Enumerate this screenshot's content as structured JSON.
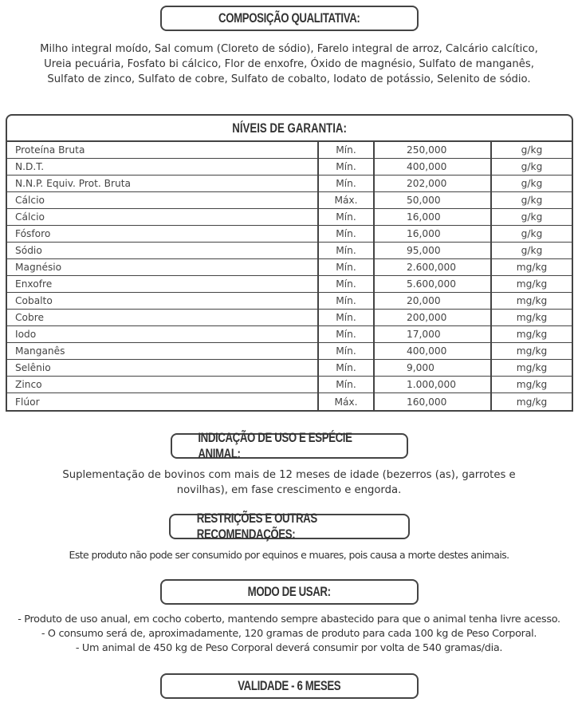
{
  "composicao": {
    "title": "COMPOSIÇÃO QUALITATIVA:",
    "lines": [
      "Milho integral moído, Sal comum (Cloreto de sódio), Farelo integral de arroz, Calcário calcítico,",
      "Ureia pecuária, Fosfato bi cálcico, Flor de enxofre, Óxido de magnésio, Sulfato de manganês,",
      "Sulfato de zinco, Sulfato de cobre, Sulfato de cobalto, Iodato de potássio, Selenito de sódio."
    ]
  },
  "niveis": {
    "title": "NÍVEIS DE GARANTIA:",
    "rows": [
      {
        "nutriente": "Proteína Bruta",
        "tipo": "Mín.",
        "valor": "250,000",
        "unidade": "g/kg"
      },
      {
        "nutriente": "N.D.T.",
        "tipo": "Mín.",
        "valor": "400,000",
        "unidade": "g/kg"
      },
      {
        "nutriente": "N.N.P. Equiv. Prot. Bruta",
        "tipo": "Mín.",
        "valor": "202,000",
        "unidade": "g/kg"
      },
      {
        "nutriente": "Cálcio",
        "tipo": "Máx.",
        "valor": "50,000",
        "unidade": "g/kg"
      },
      {
        "nutriente": "Cálcio",
        "tipo": "Mín.",
        "valor": "16,000",
        "unidade": "g/kg"
      },
      {
        "nutriente": "Fósforo",
        "tipo": "Mín.",
        "valor": "16,000",
        "unidade": "g/kg"
      },
      {
        "nutriente": "Sódio",
        "tipo": "Mín.",
        "valor": "95,000",
        "unidade": "g/kg"
      },
      {
        "nutriente": "Magnésio",
        "tipo": "Mín.",
        "valor": "2.600,000",
        "unidade": "mg/kg"
      },
      {
        "nutriente": "Enxofre",
        "tipo": "Mín.",
        "valor": "5.600,000",
        "unidade": "mg/kg"
      },
      {
        "nutriente": "Cobalto",
        "tipo": "Mín.",
        "valor": "20,000",
        "unidade": "mg/kg"
      },
      {
        "nutriente": "Cobre",
        "tipo": "Mín.",
        "valor": "200,000",
        "unidade": "mg/kg"
      },
      {
        "nutriente": "Iodo",
        "tipo": "Mín.",
        "valor": "17,000",
        "unidade": "mg/kg"
      },
      {
        "nutriente": "Manganês",
        "tipo": "Mín.",
        "valor": "400,000",
        "unidade": "mg/kg"
      },
      {
        "nutriente": "Selênio",
        "tipo": "Mín.",
        "valor": "9,000",
        "unidade": "mg/kg"
      },
      {
        "nutriente": "Zinco",
        "tipo": "Mín.",
        "valor": "1.000,000",
        "unidade": "mg/kg"
      },
      {
        "nutriente": "Flúor",
        "tipo": "Máx.",
        "valor": "160,000",
        "unidade": "mg/kg"
      }
    ]
  },
  "indicacao": {
    "title": "INDICAÇÃO DE USO E ESPÉCIE ANIMAL:",
    "lines": [
      "Suplementação de bovinos com mais de 12 meses de idade (bezerros (as), garrotes e",
      "novilhas), em fase crescimento e engorda."
    ]
  },
  "restricoes": {
    "title": "RESTRIÇÕES E OUTRAS RECOMENDAÇÕES:",
    "text": "Este produto não pode ser consumido por equinos e muares, pois causa a morte destes animais."
  },
  "modo": {
    "title": "MODO DE USAR:",
    "lines": [
      "- Produto de uso anual, em cocho coberto, mantendo sempre abastecido para que o animal tenha livre acesso.",
      "- O consumo será de, aproximadamente, 120 gramas de produto para cada 100 kg de Peso Corporal.",
      "- Um animal de 450 kg de Peso Corporal deverá consumir por volta de 540 gramas/dia."
    ]
  },
  "validade": {
    "title": "VALIDADE - 6 MESES"
  }
}
